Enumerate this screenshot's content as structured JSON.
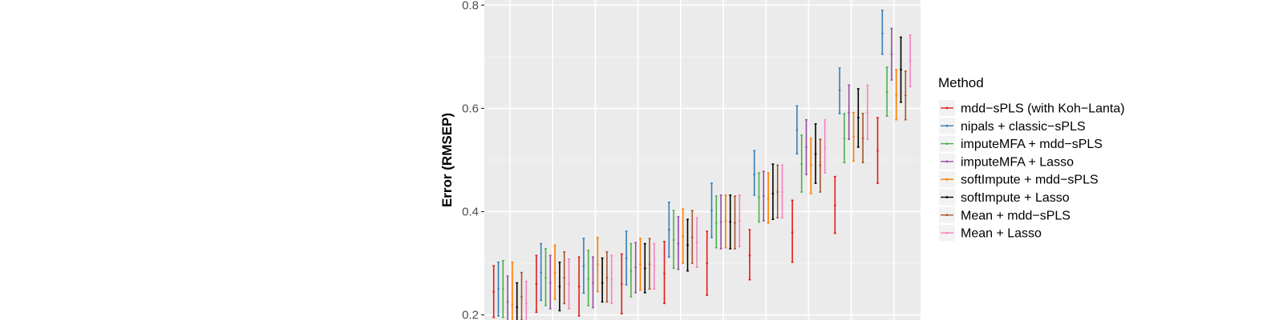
{
  "chart_data": {
    "type": "errorbar",
    "title": "",
    "xlabel": "",
    "ylabel": "Error (RMSEP)",
    "ylim": [
      0.19,
      0.81
    ],
    "yticks": [
      0.2,
      0.4,
      0.6,
      0.8
    ],
    "ytick_labels": [
      "0.2",
      "0.4",
      "0.6",
      "0.8"
    ],
    "x_group_count": 10,
    "grid": true,
    "legend": {
      "title": "Method",
      "position": "right"
    },
    "series": [
      {
        "name": "mdd−sPLS (with Koh−Lanta)",
        "color": "#e41a1c",
        "values": [
          {
            "mean": 0.245,
            "low": 0.195,
            "high": 0.295
          },
          {
            "mean": 0.26,
            "low": 0.205,
            "high": 0.315
          },
          {
            "mean": 0.255,
            "low": 0.198,
            "high": 0.312
          },
          {
            "mean": 0.26,
            "low": 0.202,
            "high": 0.318
          },
          {
            "mean": 0.28,
            "low": 0.222,
            "high": 0.342
          },
          {
            "mean": 0.3,
            "low": 0.238,
            "high": 0.362
          },
          {
            "mean": 0.315,
            "low": 0.268,
            "high": 0.365
          },
          {
            "mean": 0.36,
            "low": 0.302,
            "high": 0.422
          },
          {
            "mean": 0.412,
            "low": 0.358,
            "high": 0.468
          },
          {
            "mean": 0.518,
            "low": 0.455,
            "high": 0.582
          }
        ]
      },
      {
        "name": "nipals + classic−sPLS",
        "color": "#377eb8",
        "values": [
          {
            "mean": 0.25,
            "low": 0.198,
            "high": 0.302
          },
          {
            "mean": 0.282,
            "low": 0.228,
            "high": 0.338
          },
          {
            "mean": 0.295,
            "low": 0.242,
            "high": 0.348
          },
          {
            "mean": 0.31,
            "low": 0.258,
            "high": 0.362
          },
          {
            "mean": 0.365,
            "low": 0.312,
            "high": 0.418
          },
          {
            "mean": 0.402,
            "low": 0.35,
            "high": 0.455
          },
          {
            "mean": 0.472,
            "low": 0.432,
            "high": 0.518
          },
          {
            "mean": 0.558,
            "low": 0.512,
            "high": 0.605
          },
          {
            "mean": 0.635,
            "low": 0.59,
            "high": 0.678
          },
          {
            "mean": 0.745,
            "low": 0.705,
            "high": 0.79
          }
        ]
      },
      {
        "name": "imputeMFA + mdd−sPLS",
        "color": "#4daf4a",
        "values": [
          {
            "mean": 0.25,
            "low": 0.195,
            "high": 0.305
          },
          {
            "mean": 0.272,
            "low": 0.218,
            "high": 0.328
          },
          {
            "mean": 0.27,
            "low": 0.218,
            "high": 0.325
          },
          {
            "mean": 0.285,
            "low": 0.235,
            "high": 0.338
          },
          {
            "mean": 0.345,
            "low": 0.29,
            "high": 0.402
          },
          {
            "mean": 0.378,
            "low": 0.33,
            "high": 0.43
          },
          {
            "mean": 0.428,
            "low": 0.38,
            "high": 0.475
          },
          {
            "mean": 0.492,
            "low": 0.438,
            "high": 0.548
          },
          {
            "mean": 0.542,
            "low": 0.495,
            "high": 0.59
          },
          {
            "mean": 0.632,
            "low": 0.585,
            "high": 0.68
          }
        ]
      },
      {
        "name": "imputeMFA + Lasso",
        "color": "#984ea3",
        "values": [
          {
            "mean": 0.225,
            "low": 0.175,
            "high": 0.275
          },
          {
            "mean": 0.262,
            "low": 0.212,
            "high": 0.315
          },
          {
            "mean": 0.262,
            "low": 0.214,
            "high": 0.312
          },
          {
            "mean": 0.292,
            "low": 0.243,
            "high": 0.34
          },
          {
            "mean": 0.338,
            "low": 0.288,
            "high": 0.39
          },
          {
            "mean": 0.38,
            "low": 0.328,
            "high": 0.432
          },
          {
            "mean": 0.43,
            "low": 0.382,
            "high": 0.478
          },
          {
            "mean": 0.525,
            "low": 0.472,
            "high": 0.578
          },
          {
            "mean": 0.592,
            "low": 0.54,
            "high": 0.645
          },
          {
            "mean": 0.705,
            "low": 0.655,
            "high": 0.755
          }
        ]
      },
      {
        "name": "softImpute + mdd−sPLS",
        "color": "#ff7f00",
        "values": [
          {
            "mean": 0.22,
            "low": 0.175,
            "high": 0.302
          },
          {
            "mean": 0.282,
            "low": 0.23,
            "high": 0.335
          },
          {
            "mean": 0.298,
            "low": 0.245,
            "high": 0.35
          },
          {
            "mean": 0.298,
            "low": 0.248,
            "high": 0.348
          },
          {
            "mean": 0.352,
            "low": 0.3,
            "high": 0.405
          },
          {
            "mean": 0.382,
            "low": 0.33,
            "high": 0.432
          },
          {
            "mean": 0.425,
            "low": 0.378,
            "high": 0.475
          },
          {
            "mean": 0.49,
            "low": 0.435,
            "high": 0.542
          },
          {
            "mean": 0.545,
            "low": 0.498,
            "high": 0.592
          },
          {
            "mean": 0.625,
            "low": 0.578,
            "high": 0.675
          }
        ]
      },
      {
        "name": "softImpute + Lasso",
        "color": "#000000",
        "values": [
          {
            "mean": 0.215,
            "low": 0.17,
            "high": 0.262
          },
          {
            "mean": 0.255,
            "low": 0.208,
            "high": 0.302
          },
          {
            "mean": 0.262,
            "low": 0.225,
            "high": 0.31
          },
          {
            "mean": 0.29,
            "low": 0.243,
            "high": 0.338
          },
          {
            "mean": 0.335,
            "low": 0.285,
            "high": 0.385
          },
          {
            "mean": 0.38,
            "low": 0.328,
            "high": 0.432
          },
          {
            "mean": 0.435,
            "low": 0.385,
            "high": 0.492
          },
          {
            "mean": 0.512,
            "low": 0.455,
            "high": 0.57
          },
          {
            "mean": 0.582,
            "low": 0.525,
            "high": 0.638
          },
          {
            "mean": 0.675,
            "low": 0.612,
            "high": 0.738
          }
        ]
      },
      {
        "name": "Mean + mdd−sPLS",
        "color": "#a65628",
        "values": [
          {
            "mean": 0.235,
            "low": 0.19,
            "high": 0.282
          },
          {
            "mean": 0.272,
            "low": 0.222,
            "high": 0.322
          },
          {
            "mean": 0.272,
            "low": 0.225,
            "high": 0.322
          },
          {
            "mean": 0.298,
            "low": 0.25,
            "high": 0.348
          },
          {
            "mean": 0.35,
            "low": 0.3,
            "high": 0.402
          },
          {
            "mean": 0.378,
            "low": 0.328,
            "high": 0.43
          },
          {
            "mean": 0.438,
            "low": 0.388,
            "high": 0.49
          },
          {
            "mean": 0.49,
            "low": 0.438,
            "high": 0.54
          },
          {
            "mean": 0.542,
            "low": 0.495,
            "high": 0.59
          },
          {
            "mean": 0.625,
            "low": 0.578,
            "high": 0.672
          }
        ]
      },
      {
        "name": "Mean + Lasso",
        "color": "#f781bf",
        "values": [
          {
            "mean": 0.222,
            "low": 0.178,
            "high": 0.265
          },
          {
            "mean": 0.26,
            "low": 0.212,
            "high": 0.308
          },
          {
            "mean": 0.268,
            "low": 0.222,
            "high": 0.315
          },
          {
            "mean": 0.295,
            "low": 0.25,
            "high": 0.338
          },
          {
            "mean": 0.34,
            "low": 0.292,
            "high": 0.388
          },
          {
            "mean": 0.382,
            "low": 0.332,
            "high": 0.432
          },
          {
            "mean": 0.438,
            "low": 0.388,
            "high": 0.49
          },
          {
            "mean": 0.525,
            "low": 0.475,
            "high": 0.578
          },
          {
            "mean": 0.592,
            "low": 0.54,
            "high": 0.645
          },
          {
            "mean": 0.692,
            "low": 0.642,
            "high": 0.742
          }
        ]
      }
    ]
  }
}
